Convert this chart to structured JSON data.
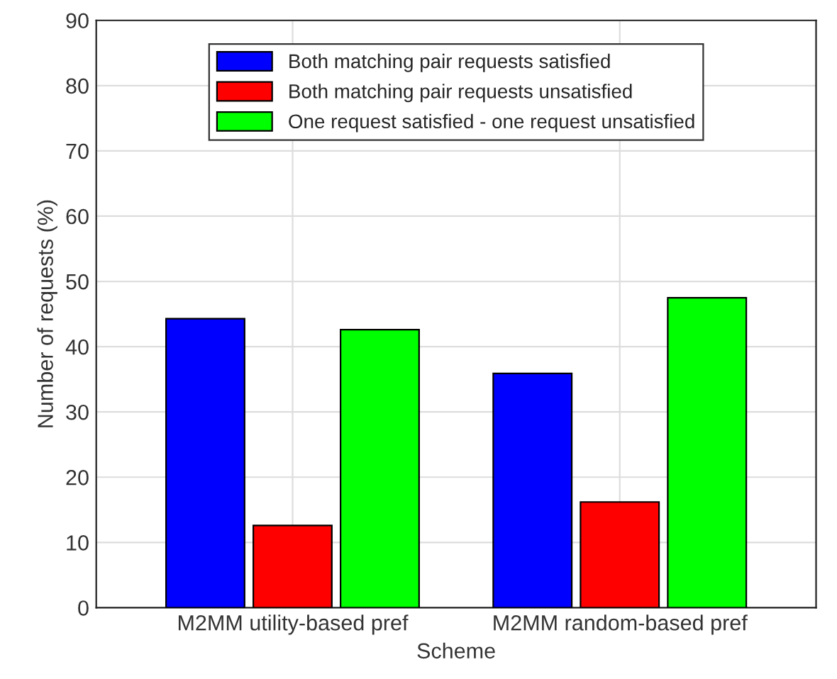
{
  "chart_data": {
    "type": "bar",
    "xlabel": "Scheme",
    "ylabel": "Number of requests (%)",
    "categories": [
      "M2MM utility-based pref",
      "M2MM random-based pref"
    ],
    "series": [
      {
        "name": "Both matching pair requests satisfied",
        "color": "#0000ff",
        "values": [
          44.3,
          35.9
        ]
      },
      {
        "name": "Both matching pair requests unsatisfied",
        "color": "#ff0000",
        "values": [
          12.6,
          16.2
        ]
      },
      {
        "name": "One request satisfied - one request unsatisfied",
        "color": "#00ff00",
        "values": [
          42.6,
          47.5
        ]
      }
    ],
    "ylim": [
      0,
      90
    ],
    "yticks": [
      0,
      10,
      20,
      30,
      40,
      50,
      60,
      70,
      80,
      90
    ],
    "grid": true,
    "legend": "top"
  }
}
